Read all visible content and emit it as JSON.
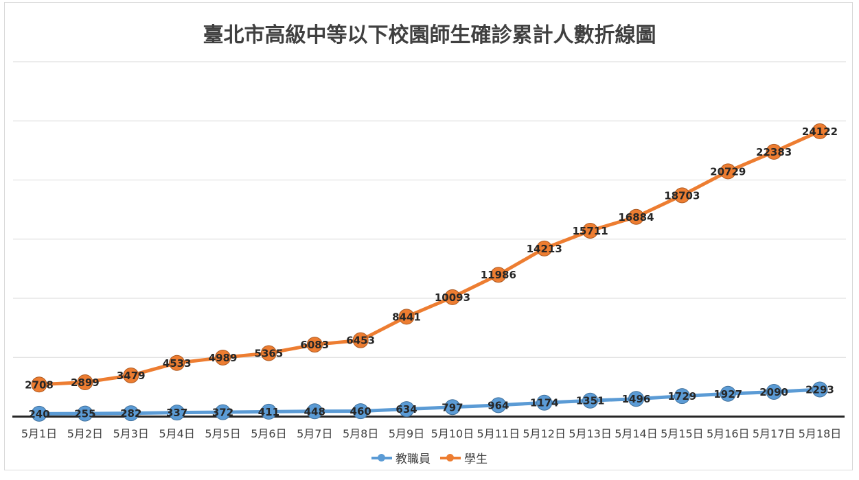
{
  "chart_data": {
    "type": "line",
    "title": "臺北市高級中等以下校園師生確診累計人數折線圖",
    "categories": [
      "5月1日",
      "5月2日",
      "5月3日",
      "5月4日",
      "5月5日",
      "5月6日",
      "5月7日",
      "5月8日",
      "5月9日",
      "5月10日",
      "5月11日",
      "5月12日",
      "5月13日",
      "5月14日",
      "5月15日",
      "5月16日",
      "5月17日",
      "5月18日"
    ],
    "series": [
      {
        "name": "教職員",
        "color": "#5B9BD5",
        "marker_border": "#41719C",
        "values": [
          240,
          255,
          282,
          337,
          372,
          411,
          448,
          460,
          634,
          797,
          964,
          1174,
          1351,
          1496,
          1729,
          1927,
          2090,
          2293
        ]
      },
      {
        "name": "學生",
        "color": "#ED7D31",
        "marker_border": "#AE5A21",
        "values": [
          2708,
          2899,
          3479,
          4533,
          4989,
          5365,
          6083,
          6453,
          8441,
          10093,
          11986,
          14213,
          15711,
          16884,
          18703,
          20729,
          22383,
          24122
        ]
      }
    ],
    "ylim": [
      0,
      30000
    ],
    "grid_interval": 5000,
    "grid": "horizontal-only",
    "y_axis_labels_visible": false,
    "data_labels": "visible, centered on points",
    "legend_position": "bottom"
  },
  "colors": {
    "gridline": "#D9D9D9",
    "axis_line": "#262626",
    "data_label_text": "#262626",
    "axis_label_text": "#404040",
    "title_text": "#404040",
    "chart_border": "#D9D9D9",
    "background": "#FFFFFF"
  }
}
